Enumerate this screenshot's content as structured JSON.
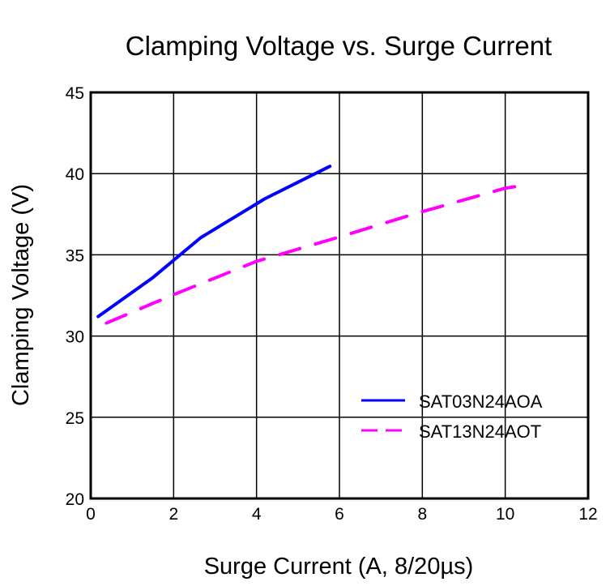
{
  "chart_data": {
    "type": "line",
    "title": "Clamping Voltage vs. Surge Current",
    "xlabel": "Surge Current (A, 8/20µs)",
    "ylabel": "Clamping Voltage (V)",
    "xlim": [
      0,
      12
    ],
    "ylim": [
      20,
      45
    ],
    "xticks": [
      0,
      2,
      4,
      6,
      8,
      10,
      12
    ],
    "yticks": [
      20,
      25,
      30,
      35,
      40,
      45
    ],
    "grid": true,
    "legend_position": "bottom-right",
    "series": [
      {
        "name": "SAT03N24AOA",
        "color": "#0000ff",
        "style": "solid",
        "x": [
          0.18,
          1.5,
          2.65,
          4.2,
          5.77
        ],
        "y": [
          31.2,
          33.6,
          36.05,
          38.45,
          40.45
        ]
      },
      {
        "name": "SAT13N24AOT",
        "color": "#ff00ff",
        "style": "dashed",
        "x": [
          0.38,
          2.0,
          4.0,
          6.0,
          7.85,
          10.0,
          10.37
        ],
        "y": [
          30.8,
          32.55,
          34.6,
          36.1,
          37.55,
          39.1,
          39.25
        ]
      }
    ]
  }
}
